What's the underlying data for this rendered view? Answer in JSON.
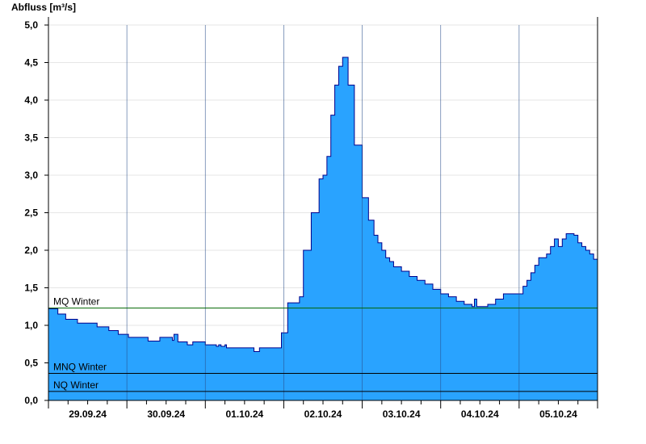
{
  "chart_data": {
    "type": "area",
    "ylabel": "Abfluss [m³/s]",
    "ylim": [
      0,
      5.0
    ],
    "yticks": [
      "0,0",
      "0,5",
      "1,0",
      "1,5",
      "2,0",
      "2,5",
      "3,0",
      "3,5",
      "4,0",
      "4,5",
      "5,0"
    ],
    "xlim_days": [
      0,
      7
    ],
    "day_labels": [
      "29.09.24",
      "30.09.24",
      "01.10.24",
      "02.10.24",
      "03.10.24",
      "04.10.24",
      "05.10.24"
    ],
    "grid": true,
    "fill_color": "#29a3ff",
    "line_color": "#00008b",
    "series": [
      {
        "x": [
          0.0,
          0.1,
          0.12,
          0.2,
          0.22,
          0.35,
          0.37,
          0.6,
          0.62,
          0.75,
          0.77,
          0.87,
          0.89,
          1.0,
          1.02,
          1.25,
          1.27,
          1.42,
          1.44,
          1.58,
          1.6,
          1.65,
          1.7,
          1.75,
          1.77,
          1.82,
          1.84,
          2.0,
          2.02,
          2.12,
          2.14,
          2.17,
          2.2,
          2.25,
          2.27,
          2.6,
          2.62,
          2.67,
          2.69,
          2.95,
          2.97,
          3.05,
          3.07,
          3.2,
          3.25,
          3.35,
          3.45,
          3.5,
          3.55,
          3.6,
          3.65,
          3.7,
          3.75,
          3.82,
          3.9,
          4.0,
          4.08,
          4.15,
          4.2,
          4.25,
          4.3,
          4.35,
          4.4,
          4.5,
          4.6,
          4.7,
          4.8,
          4.9,
          5.0,
          5.1,
          5.2,
          5.3,
          5.4,
          5.43,
          5.46,
          5.5,
          5.6,
          5.7,
          5.8,
          5.9,
          6.0,
          6.05,
          6.1,
          6.15,
          6.2,
          6.25,
          6.3,
          6.35,
          6.4,
          6.45,
          6.5,
          6.55,
          6.6,
          6.65,
          6.7,
          6.75,
          6.8,
          6.85,
          6.9,
          6.95,
          7.0
        ],
        "y": [
          1.22,
          1.22,
          1.15,
          1.15,
          1.08,
          1.08,
          1.03,
          1.03,
          0.98,
          0.98,
          0.93,
          0.93,
          0.88,
          0.88,
          0.84,
          0.84,
          0.79,
          0.84,
          0.84,
          0.8,
          0.88,
          0.78,
          0.78,
          0.78,
          0.74,
          0.74,
          0.78,
          0.74,
          0.74,
          0.74,
          0.72,
          0.74,
          0.72,
          0.74,
          0.7,
          0.7,
          0.65,
          0.65,
          0.7,
          0.7,
          0.9,
          1.3,
          1.3,
          1.38,
          2.0,
          2.5,
          2.95,
          3.0,
          3.25,
          3.8,
          4.2,
          4.45,
          4.57,
          4.2,
          3.4,
          2.7,
          2.4,
          2.2,
          2.1,
          2.0,
          1.9,
          1.85,
          1.78,
          1.72,
          1.65,
          1.6,
          1.55,
          1.48,
          1.42,
          1.38,
          1.32,
          1.28,
          1.25,
          1.35,
          1.25,
          1.25,
          1.28,
          1.35,
          1.42,
          1.42,
          1.42,
          1.52,
          1.6,
          1.7,
          1.8,
          1.9,
          1.9,
          1.95,
          2.05,
          2.15,
          2.05,
          2.15,
          2.22,
          2.22,
          2.2,
          2.1,
          2.05,
          2.0,
          1.95,
          1.88,
          1.82
        ]
      }
    ],
    "reference_lines": [
      {
        "label": "MQ Winter",
        "value": 1.23,
        "color": "#006400"
      },
      {
        "label": "MNQ Winter",
        "value": 0.36,
        "color": "#000000"
      },
      {
        "label": "NQ Winter",
        "value": 0.12,
        "color": "#000000"
      }
    ]
  }
}
